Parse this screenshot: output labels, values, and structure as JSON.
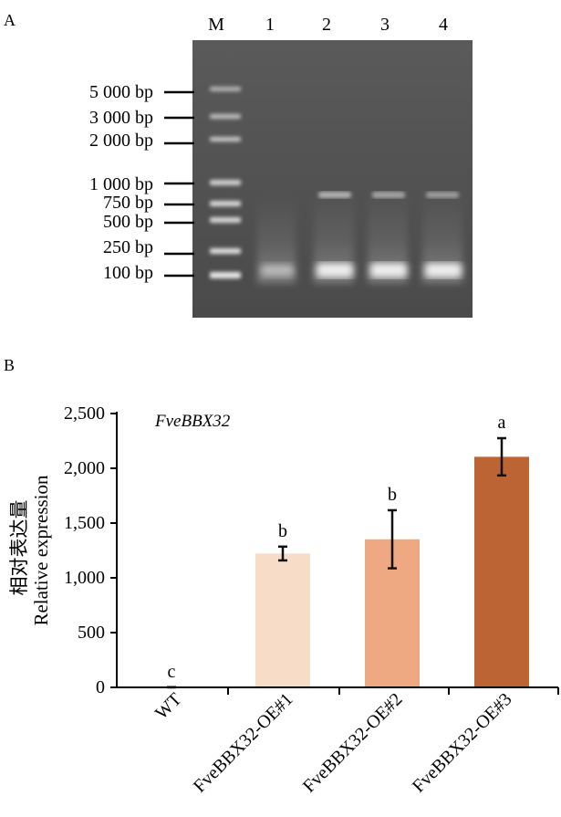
{
  "panel_a": {
    "letter": "A",
    "lane_labels": [
      "M",
      "1",
      "2",
      "3",
      "4"
    ],
    "markers": [
      "5 000 bp",
      "3 000 bp",
      "2 000 bp",
      "1 000 bp",
      "750 bp",
      "500 bp",
      "250 bp",
      "100 bp"
    ]
  },
  "panel_b": {
    "letter": "B"
  },
  "chart_data": {
    "type": "bar",
    "title": "FveBBX32",
    "ylabel": "相对表达量",
    "ylabel2": "Relative expression",
    "xlabel": "",
    "categories": [
      "WT",
      "FveBBX32-OE#1",
      "FveBBX32-OE#2",
      "FveBBX32-OE#3"
    ],
    "values": [
      1,
      1222,
      1352,
      2105
    ],
    "errors": [
      1,
      63,
      265,
      170
    ],
    "significance": [
      "c",
      "b",
      "b",
      "a"
    ],
    "colors": [
      "#f7dcc8",
      "#f7dcc8",
      "#eea882",
      "#bd6434"
    ],
    "ylim": [
      0,
      2500
    ],
    "yticks": [
      0,
      500,
      1000,
      1500,
      2000,
      2500
    ],
    "ytick_labels": [
      "0",
      "500",
      "1,000",
      "1,500",
      "2,000",
      "2,500"
    ],
    "grid": false
  }
}
